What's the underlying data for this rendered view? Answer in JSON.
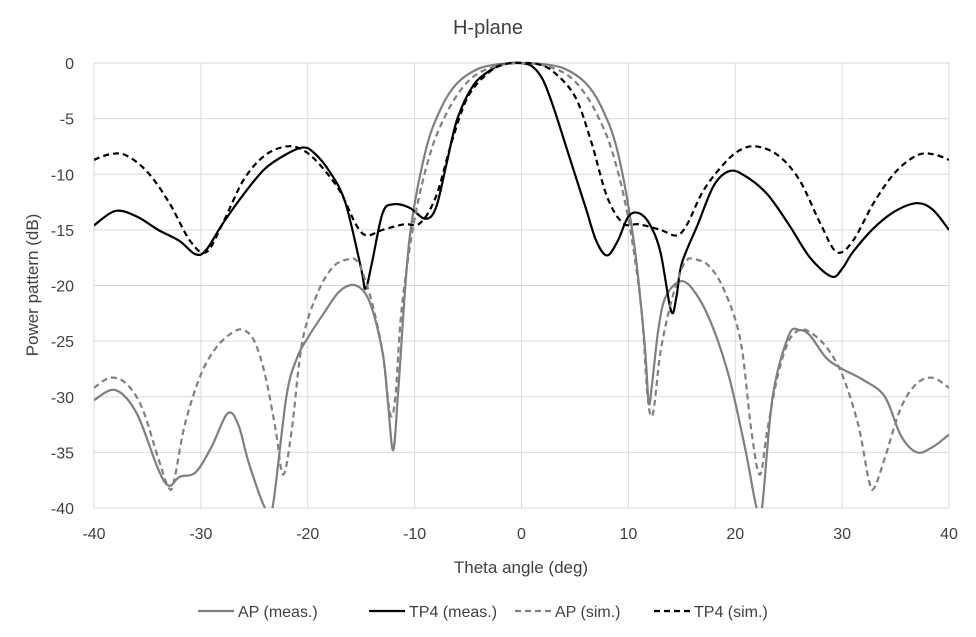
{
  "chart_data": {
    "type": "line",
    "title": "H-plane",
    "xlabel": "Theta angle (deg)",
    "ylabel": "Power pattern (dB)",
    "xlim": [
      -40,
      40
    ],
    "ylim": [
      -40,
      0
    ],
    "xticks": [
      -40,
      -30,
      -20,
      -10,
      0,
      10,
      20,
      30,
      40
    ],
    "yticks": [
      0,
      -5,
      -10,
      -15,
      -20,
      -25,
      -30,
      -35,
      -40
    ],
    "grid": true,
    "legend_position": "bottom",
    "series": [
      {
        "name": "AP (meas.)",
        "color": "#7f7f7f",
        "dash": "solid",
        "x": [
          -40,
          -38,
          -36,
          -34,
          -33,
          -32,
          -30.5,
          -29,
          -27.5,
          -26.5,
          -25.5,
          -24,
          -23.3,
          -22,
          -21,
          -20,
          -18.5,
          -17,
          -15.5,
          -14.2,
          -13,
          -12.5,
          -12,
          -11.5,
          -10.5,
          -9,
          -7.5,
          -6,
          -4,
          -2,
          0,
          2,
          4,
          6,
          7.5,
          9,
          10.5,
          11.5,
          11.9,
          12.2,
          12.8,
          13.5,
          15,
          16.5,
          18,
          19.5,
          21,
          22,
          22.5,
          23.5,
          25,
          26,
          27,
          28.5,
          30,
          32,
          34,
          35.5,
          37,
          38.5,
          40
        ],
        "y": [
          -30.3,
          -29.4,
          -31.5,
          -36.5,
          -38.0,
          -37.2,
          -36.8,
          -34.5,
          -31.5,
          -32.5,
          -36.0,
          -40.0,
          -40,
          -30.0,
          -26.5,
          -24.7,
          -22.5,
          -20.5,
          -20.0,
          -21.5,
          -26.0,
          -30.5,
          -34.8,
          -29.0,
          -16.0,
          -8.0,
          -4.0,
          -1.8,
          -0.5,
          -0.1,
          0,
          -0.1,
          -0.5,
          -1.8,
          -4.0,
          -8.0,
          -16.0,
          -25.0,
          -30.5,
          -29.0,
          -24.0,
          -21.0,
          -19.6,
          -21.0,
          -24.0,
          -28.5,
          -35.0,
          -40.0,
          -40,
          -30.0,
          -24.5,
          -24.0,
          -24.5,
          -26.5,
          -27.5,
          -28.5,
          -30.0,
          -33.5,
          -35.0,
          -34.5,
          -33.4
        ]
      },
      {
        "name": "TP4 (meas.)",
        "color": "#000000",
        "dash": "solid",
        "x": [
          -40,
          -38,
          -36,
          -34,
          -32,
          -30.5,
          -29.5,
          -28,
          -26,
          -24,
          -22,
          -20.5,
          -19.5,
          -18,
          -16.5,
          -15,
          -14.6,
          -14,
          -13,
          -12,
          -10.5,
          -9,
          -8,
          -7,
          -6,
          -4.5,
          -3,
          -2,
          -1,
          0,
          1,
          2,
          3,
          4.5,
          6,
          7,
          8,
          9,
          10,
          11,
          12,
          13,
          14,
          14.5,
          15,
          16.5,
          18,
          19.5,
          21,
          23,
          25,
          27,
          29,
          30,
          31,
          33,
          35,
          37,
          38.5,
          40
        ],
        "y": [
          -14.6,
          -13.3,
          -13.8,
          -15.0,
          -16.0,
          -17.2,
          -16.8,
          -14.5,
          -11.8,
          -9.5,
          -8.2,
          -7.6,
          -8.0,
          -9.7,
          -12.5,
          -18.5,
          -20.3,
          -18.0,
          -13.5,
          -12.7,
          -13.0,
          -14.0,
          -13.0,
          -9.0,
          -5.0,
          -2.0,
          -0.7,
          -0.2,
          0,
          0,
          -0.3,
          -1.5,
          -4.0,
          -8.5,
          -13.0,
          -16.0,
          -17.3,
          -16.0,
          -13.8,
          -13.5,
          -14.5,
          -17.0,
          -22.3,
          -21.0,
          -18.0,
          -14.5,
          -11.0,
          -9.7,
          -10.2,
          -11.8,
          -14.5,
          -17.5,
          -19.2,
          -18.5,
          -17.0,
          -14.8,
          -13.3,
          -12.6,
          -13.2,
          -15.0
        ]
      },
      {
        "name": "AP (sim.)",
        "color": "#808080",
        "dash": "6,4",
        "x": [
          -40,
          -38.5,
          -37,
          -35.5,
          -34,
          -33,
          -32.5,
          -31.5,
          -30,
          -28.5,
          -27,
          -26,
          -25,
          -24,
          -23,
          -22.3,
          -21.5,
          -20.5,
          -19,
          -17.5,
          -16,
          -15.5,
          -15,
          -14,
          -13,
          -12.3,
          -11.8,
          -11.2,
          -10,
          -8.5,
          -7,
          -5.5,
          -4,
          -2,
          0,
          2,
          4,
          5.5,
          7,
          8.5,
          10,
          11.2,
          11.8,
          12.3,
          13,
          14,
          15,
          15.5,
          16,
          17.5,
          19,
          20.5,
          21.5,
          22.3,
          23,
          24,
          25,
          26,
          27,
          28.5,
          30,
          31.5,
          32.5,
          33,
          34,
          35.5,
          37,
          38.5,
          40
        ],
        "y": [
          -29.2,
          -28.3,
          -28.8,
          -31.0,
          -35.5,
          -38.2,
          -37.5,
          -32.5,
          -28.0,
          -25.5,
          -24.2,
          -24.0,
          -25.0,
          -28.0,
          -33.0,
          -37.0,
          -33.0,
          -25.0,
          -20.5,
          -18.2,
          -17.6,
          -17.7,
          -18.5,
          -21.5,
          -26.0,
          -31.5,
          -30.0,
          -22.0,
          -14.0,
          -8.0,
          -4.5,
          -2.2,
          -0.9,
          -0.2,
          0,
          -0.2,
          -0.9,
          -2.2,
          -4.5,
          -8.0,
          -14.0,
          -22.0,
          -30.0,
          -31.5,
          -26.0,
          -21.5,
          -18.5,
          -17.7,
          -17.6,
          -18.2,
          -20.5,
          -25.0,
          -33.0,
          -37.0,
          -33.0,
          -28.0,
          -25.0,
          -24.0,
          -24.2,
          -25.5,
          -28.0,
          -32.5,
          -37.5,
          -38.2,
          -35.5,
          -31.0,
          -28.8,
          -28.3,
          -29.2
        ]
      },
      {
        "name": "TP4 (sim.)",
        "color": "#000000",
        "dash": "6,4",
        "x": [
          -40,
          -38.5,
          -37,
          -35,
          -33,
          -31,
          -29.5,
          -28,
          -26,
          -24,
          -22,
          -20.5,
          -19,
          -17,
          -15.5,
          -14.5,
          -13,
          -11,
          -9.5,
          -8,
          -6.5,
          -5,
          -3,
          -1.5,
          0,
          1.5,
          3,
          5,
          6.5,
          8,
          9.5,
          11,
          13,
          14.5,
          15.5,
          17,
          19,
          20.5,
          22,
          24,
          26,
          28,
          29.5,
          31,
          33,
          35,
          37,
          38.5,
          40
        ],
        "y": [
          -8.7,
          -8.2,
          -8.3,
          -9.8,
          -12.5,
          -16.0,
          -17.0,
          -14.5,
          -10.5,
          -8.3,
          -7.5,
          -7.8,
          -9.0,
          -11.5,
          -14.5,
          -15.5,
          -15.0,
          -14.5,
          -14.4,
          -12.0,
          -7.0,
          -3.0,
          -0.8,
          -0.1,
          0,
          -0.1,
          -0.8,
          -3.0,
          -7.0,
          -12.0,
          -14.4,
          -14.5,
          -15.0,
          -15.5,
          -14.5,
          -11.5,
          -9.0,
          -7.8,
          -7.5,
          -8.3,
          -10.5,
          -14.5,
          -17.0,
          -16.0,
          -12.5,
          -9.8,
          -8.3,
          -8.2,
          -8.7
        ]
      }
    ]
  }
}
